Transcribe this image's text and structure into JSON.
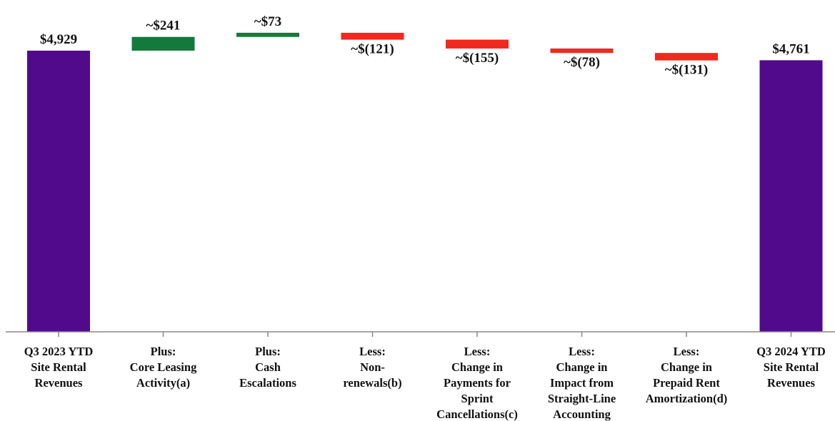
{
  "chart_data": {
    "type": "bar",
    "subtype": "waterfall",
    "title": "",
    "xlabel": "",
    "ylabel": "",
    "grid": false,
    "legend": "none",
    "colors": {
      "total": "#520A8C",
      "increase": "#137A3C",
      "decrease": "#F0281E",
      "axis": "#888888"
    },
    "categories": [
      [
        "Q3 2023 YTD",
        "Site Rental",
        "Revenues"
      ],
      [
        "Plus:",
        "Core Leasing",
        "Activity(a)"
      ],
      [
        "Plus:",
        "Cash",
        "Escalations"
      ],
      [
        "Less:",
        "Non-",
        "renewals(b)"
      ],
      [
        "Less:",
        "Change in",
        "Payments for",
        "Sprint",
        "Cancellations(c)"
      ],
      [
        "Less:",
        "Change in",
        "Impact from",
        "Straight-Line",
        "Accounting"
      ],
      [
        "Less:",
        "Change in",
        "Prepaid Rent",
        "Amortization(d)"
      ],
      [
        "Q3 2024 YTD",
        "Site Rental",
        "Revenues"
      ]
    ],
    "values": [
      4929,
      241,
      73,
      -121,
      -155,
      -78,
      -131,
      4761
    ],
    "kinds": [
      "total",
      "increase",
      "increase",
      "decrease",
      "decrease",
      "decrease",
      "decrease",
      "total"
    ],
    "labels": [
      "$4,929",
      "~$241",
      "~$73",
      "~$(121)",
      "~$(155)",
      "~$(78)",
      "~$(131)",
      "$4,761"
    ]
  }
}
